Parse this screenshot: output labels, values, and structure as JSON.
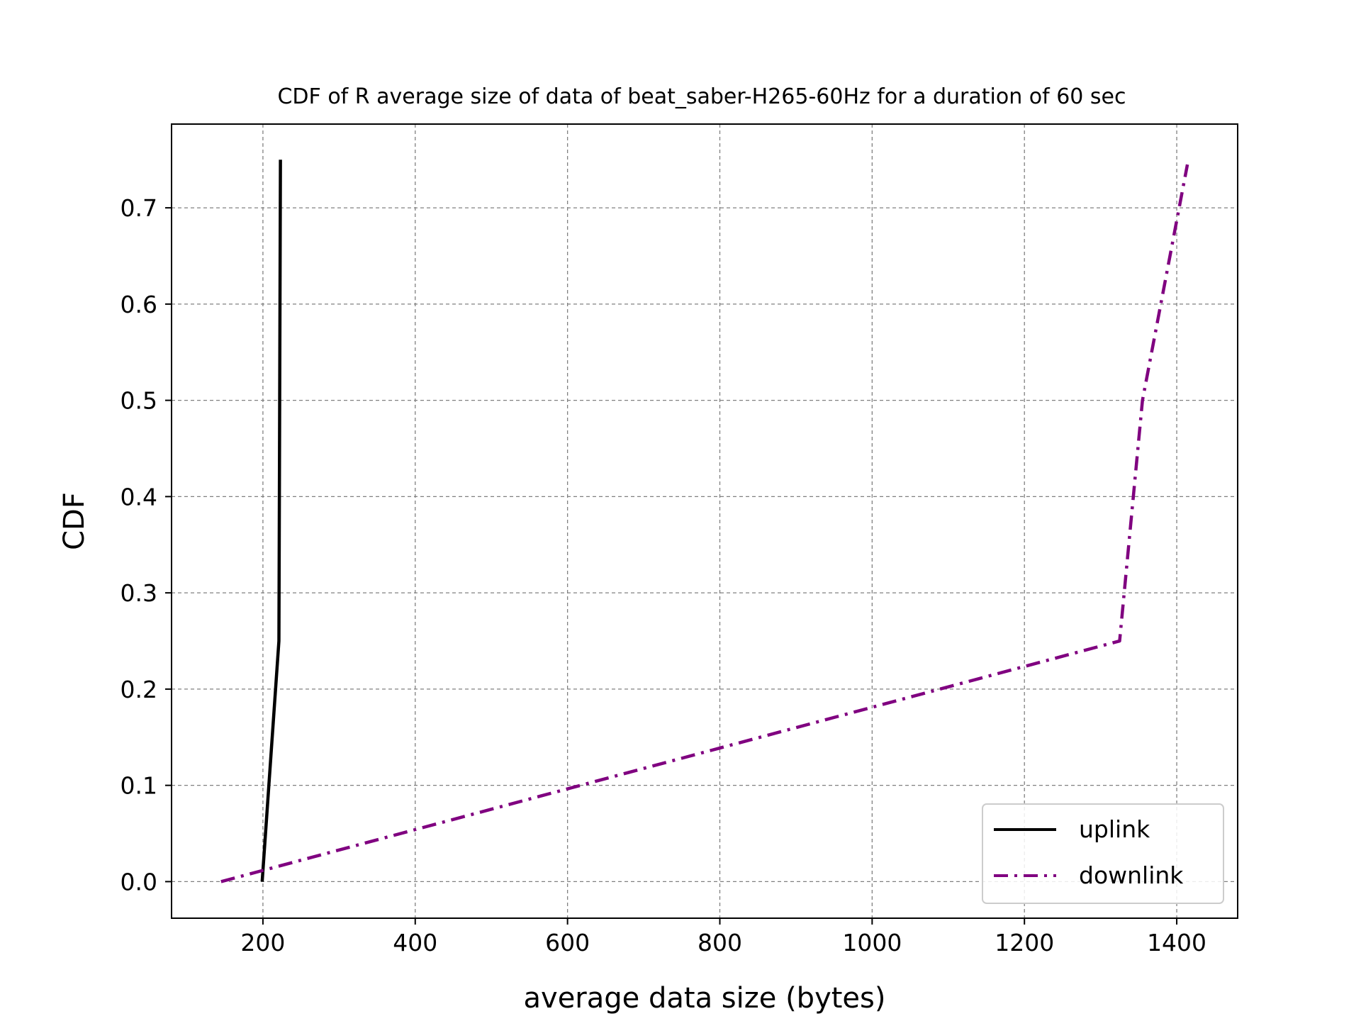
{
  "chart_data": {
    "type": "line",
    "title": "CDF of R average size of data of beat_saber-H265-60Hz for a duration of 60 sec",
    "xlabel": "average data size (bytes)",
    "ylabel": "CDF",
    "xlim": [
      80,
      1480
    ],
    "ylim": [
      -0.038,
      0.787
    ],
    "xticks": [
      200,
      400,
      600,
      800,
      1000,
      1200,
      1400
    ],
    "xtick_labels": [
      "200",
      "400",
      "600",
      "800",
      "1000",
      "1200",
      "1400"
    ],
    "yticks": [
      0.0,
      0.1,
      0.2,
      0.3,
      0.4,
      0.5,
      0.6,
      0.7
    ],
    "ytick_labels": [
      "0.0",
      "0.1",
      "0.2",
      "0.3",
      "0.4",
      "0.5",
      "0.6",
      "0.7"
    ],
    "grid": true,
    "legend_position": "lower right",
    "series": [
      {
        "name": "uplink",
        "color": "#000000",
        "style": "solid",
        "x": [
          199,
          221,
          223
        ],
        "y": [
          0.0,
          0.25,
          0.75
        ]
      },
      {
        "name": "downlink",
        "color": "#800080",
        "style": "dashdot",
        "x": [
          145,
          1325,
          1355,
          1414
        ],
        "y": [
          0.0,
          0.25,
          0.5,
          0.745
        ]
      }
    ]
  }
}
